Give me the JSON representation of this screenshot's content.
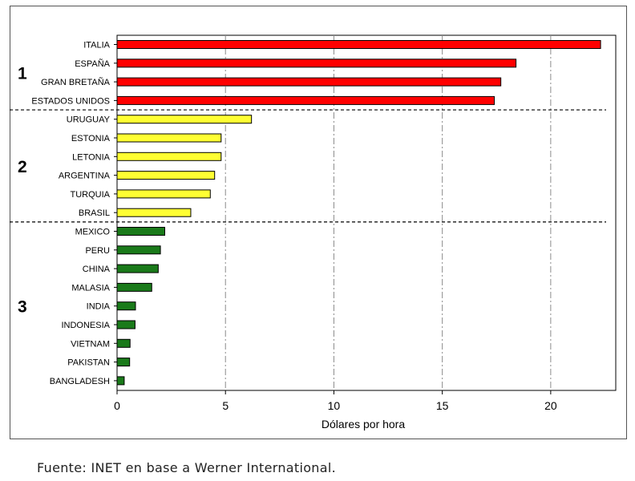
{
  "chart_data": {
    "type": "bar",
    "orientation": "horizontal",
    "categories": [
      "ITALIA",
      "ESPAÑA",
      "GRAN BRETAÑA",
      "ESTADOS UNIDOS",
      "URUGUAY",
      "ESTONIA",
      "LETONIA",
      "ARGENTINA",
      "TURQUIA",
      "BRASIL",
      "MEXICO",
      "PERU",
      "CHINA",
      "MALASIA",
      "INDIA",
      "INDONESIA",
      "VIETNAM",
      "PAKISTAN",
      "BANGLADESH"
    ],
    "values": [
      22.3,
      18.4,
      17.7,
      17.4,
      6.2,
      4.8,
      4.8,
      4.5,
      4.3,
      3.4,
      2.2,
      2.0,
      1.9,
      1.6,
      0.85,
      0.83,
      0.6,
      0.58,
      0.33
    ],
    "groups": [
      {
        "label": "1",
        "color": "#ff0000",
        "members": [
          "ITALIA",
          "ESPAÑA",
          "GRAN BRETAÑA",
          "ESTADOS UNIDOS"
        ]
      },
      {
        "label": "2",
        "color": "#ffff33",
        "members": [
          "URUGUAY",
          "ESTONIA",
          "LETONIA",
          "ARGENTINA",
          "TURQUIA",
          "BRASIL"
        ]
      },
      {
        "label": "3",
        "color": "#1a7a1a",
        "members": [
          "MEXICO",
          "PERU",
          "CHINA",
          "MALASIA",
          "INDIA",
          "INDONESIA",
          "VIETNAM",
          "PAKISTAN",
          "BANGLADESH"
        ]
      }
    ],
    "xlabel": "Dólares por hora",
    "ylabel": "",
    "xlim": [
      0,
      23
    ],
    "xticks": [
      0,
      5,
      10,
      15,
      20
    ],
    "grid": "vertical dash-dot lines at 5, 10, 15, 20",
    "group_separators": "dashed horizontal lines between groups"
  },
  "footer": {
    "source": "Fuente: INET en base a Werner International."
  }
}
